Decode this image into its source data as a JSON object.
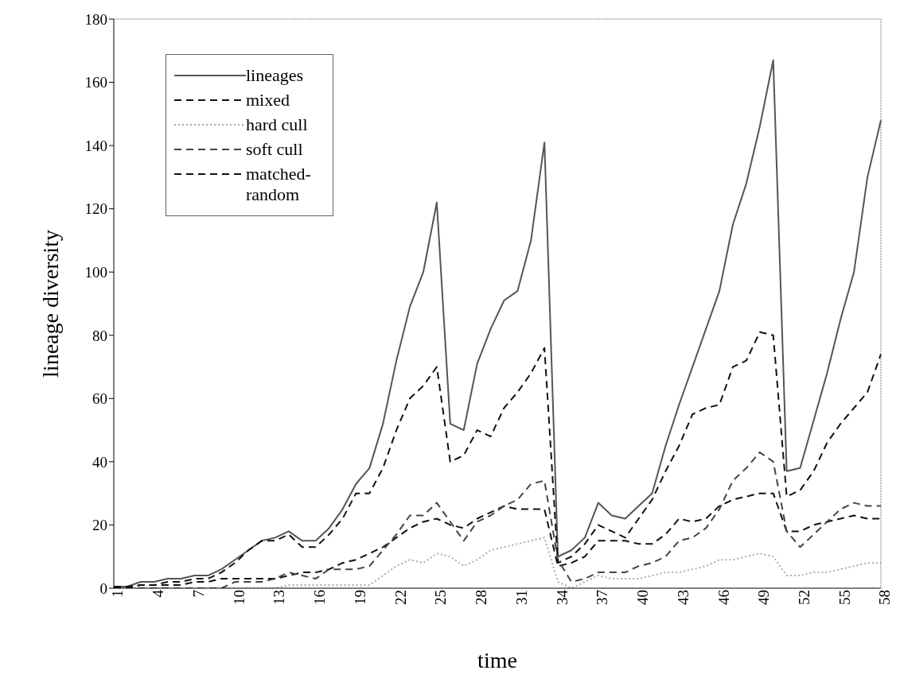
{
  "chart_data": {
    "type": "line",
    "xlabel": "time",
    "ylabel": "lineage diversity",
    "categories": [
      "1",
      null,
      null,
      "4",
      null,
      null,
      "7",
      null,
      null,
      "10",
      null,
      null,
      "13",
      null,
      null,
      "16",
      null,
      null,
      "19",
      null,
      null,
      "22",
      null,
      null,
      "25",
      null,
      null,
      "28",
      null,
      null,
      "31",
      null,
      null,
      "34",
      null,
      null,
      "37",
      null,
      null,
      "40",
      null,
      null,
      "43",
      null,
      null,
      "46",
      null,
      null,
      "49",
      null,
      null,
      "52",
      null,
      null,
      "55",
      null,
      null,
      "58"
    ],
    "series": [
      {
        "name": "lineages",
        "color": "#555555",
        "line_style": "solid",
        "values": [
          0.5,
          0.5,
          2,
          2,
          3,
          3,
          4,
          4,
          6,
          9,
          12,
          15,
          16,
          18,
          15,
          15,
          19,
          25,
          33,
          38,
          52,
          72,
          89,
          100,
          122,
          52,
          50,
          71,
          82,
          91,
          94,
          110,
          141,
          10,
          12,
          16,
          27,
          23,
          22,
          26,
          30,
          45,
          58,
          70,
          82,
          94,
          115,
          128,
          146,
          167,
          37,
          38,
          53,
          68,
          85,
          100,
          130,
          148
        ]
      },
      {
        "name": "mixed",
        "color": "#111111",
        "line_style": "dashed",
        "values": [
          0.5,
          0.5,
          1,
          1,
          1,
          1,
          2,
          2,
          3,
          3,
          3,
          3,
          3,
          4,
          5,
          5,
          6,
          8,
          9,
          11,
          13,
          16,
          19,
          21,
          22,
          20,
          19,
          22,
          24,
          26,
          25,
          25,
          25,
          7,
          8,
          10,
          15,
          15,
          15,
          14,
          14,
          17,
          22,
          21,
          22,
          26,
          28,
          29,
          30,
          30,
          18,
          18,
          20,
          21,
          22,
          23,
          22,
          22
        ]
      },
      {
        "name": "hard cull",
        "color": "#aaaaaa",
        "line_style": "dotted",
        "values": [
          0,
          0,
          0,
          0,
          0,
          0,
          0,
          0,
          0,
          0,
          0,
          0,
          0,
          1,
          1,
          1,
          1,
          1,
          1,
          1,
          4,
          7,
          9,
          8,
          11,
          10,
          7,
          9,
          12,
          13,
          14,
          15,
          16,
          2,
          0,
          2,
          4,
          3,
          3,
          3,
          4,
          5,
          5,
          6,
          7,
          9,
          9,
          10,
          11,
          10,
          4,
          4,
          5,
          5,
          6,
          7,
          8,
          8
        ]
      },
      {
        "name": "soft cull",
        "color": "#444444",
        "line_style": "dashed",
        "values": [
          0,
          0,
          0,
          0,
          0,
          0,
          0,
          0,
          0,
          2,
          2,
          2,
          3,
          5,
          4,
          3,
          6,
          6,
          6,
          7,
          12,
          17,
          23,
          23,
          27,
          21,
          15,
          21,
          23,
          26,
          28,
          33,
          34,
          9,
          2,
          3,
          5,
          5,
          5,
          7,
          8,
          10,
          15,
          16,
          19,
          25,
          34,
          38,
          43,
          40,
          18,
          13,
          17,
          21,
          25,
          27,
          26,
          26
        ]
      },
      {
        "name": "matched-random",
        "color": "#111111",
        "line_style": "dashed",
        "values": [
          0,
          0,
          1,
          1,
          2,
          2,
          3,
          3,
          5,
          8,
          12,
          15,
          15,
          17,
          13,
          13,
          17,
          22,
          30,
          30,
          38,
          50,
          60,
          64,
          70,
          40,
          42,
          50,
          48,
          57,
          62,
          68,
          76,
          8,
          10,
          14,
          20,
          18,
          16,
          22,
          28,
          37,
          45,
          55,
          57,
          58,
          70,
          72,
          81,
          80,
          29,
          31,
          37,
          46,
          52,
          57,
          62,
          74
        ]
      }
    ],
    "ylim": [
      0,
      180
    ],
    "yticks": [
      0,
      20,
      40,
      60,
      80,
      100,
      120,
      140,
      160,
      180
    ],
    "legend": "top left"
  }
}
